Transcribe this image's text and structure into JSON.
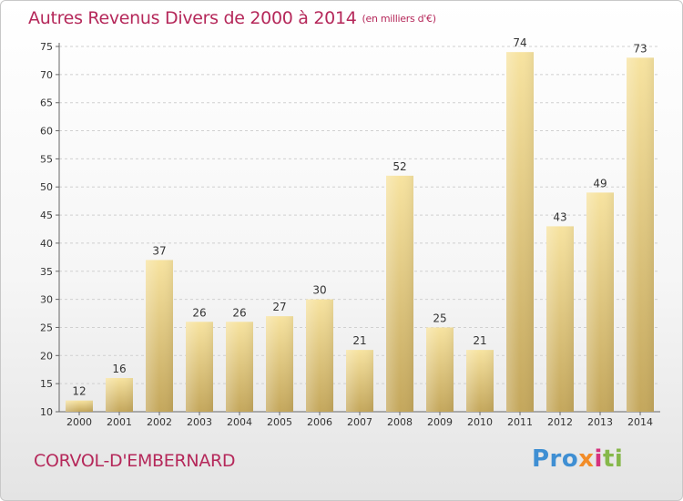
{
  "title": "Autres Revenus Divers de 2000 à 2014",
  "unit_label": "(en milliers d'€)",
  "commune_name": "CORVOL-D'EMBERNARD",
  "logo": {
    "part1": "Pro",
    "part2": "x",
    "part3": "i",
    "part4": "ti"
  },
  "colors": {
    "title": "#b5285a",
    "bar_light": "#f5df98",
    "bar_dark": "#c6a95e",
    "grid": "#d0d0d0"
  },
  "chart_data": {
    "type": "bar",
    "categories": [
      "2000",
      "2001",
      "2002",
      "2003",
      "2004",
      "2005",
      "2006",
      "2007",
      "2008",
      "2009",
      "2010",
      "2011",
      "2012",
      "2013",
      "2014"
    ],
    "values": [
      12,
      16,
      37,
      26,
      26,
      27,
      30,
      21,
      52,
      25,
      21,
      74,
      43,
      49,
      73
    ],
    "ylim": [
      10,
      75
    ],
    "yticks": [
      10,
      15,
      20,
      25,
      30,
      35,
      40,
      45,
      50,
      55,
      60,
      65,
      70,
      75
    ],
    "grid": true,
    "data_labels": true
  }
}
